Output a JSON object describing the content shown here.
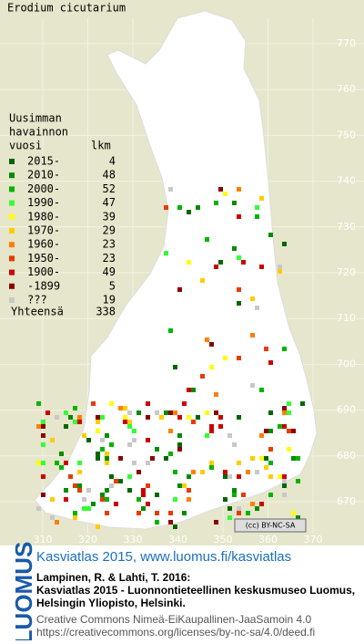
{
  "title": "Erodium cicutarium",
  "legend": {
    "heading": [
      "Uusimman",
      "havainnon"
    ],
    "col_year": "vuosi",
    "col_count": "lkm",
    "rows": [
      {
        "label": "2015-",
        "count": 4,
        "color": "#006600"
      },
      {
        "label": "2010-",
        "count": 48,
        "color": "#008c00"
      },
      {
        "label": "2000-",
        "count": 52,
        "color": "#00b400"
      },
      {
        "label": "1990-",
        "count": 47,
        "color": "#33ff33"
      },
      {
        "label": "1980-",
        "count": 39,
        "color": "#ffff00"
      },
      {
        "label": "1970-",
        "count": 29,
        "color": "#ffcc00"
      },
      {
        "label": "1960-",
        "count": 23,
        "color": "#ff8000"
      },
      {
        "label": "1950-",
        "count": 23,
        "color": "#e63c00"
      },
      {
        "label": "1900-",
        "count": 49,
        "color": "#cc0000"
      },
      {
        "label": "-1899",
        "count": 5,
        "color": "#8b0000"
      },
      {
        "label": "???",
        "count": 19,
        "color": "#c8c8c8"
      }
    ],
    "total_label": "Yhteensä",
    "total": 338
  },
  "axes": {
    "x_labels": [
      310,
      320,
      330,
      340,
      350,
      360,
      370
    ],
    "y_labels": [
      770,
      760,
      750,
      740,
      730,
      720,
      710,
      700,
      690,
      680,
      670
    ]
  },
  "license_badge": "(cc) BY-NC-SA",
  "footer": {
    "logo": "LUOMUS",
    "headline": "Kasviatlas 2015, www.luomus.fi/kasviatlas",
    "citation": [
      "Lampinen, R. & Lahti, T. 2016:",
      "Kasviatlas 2015 - Luonnontieteellinen keskusmuseo Luomus,",
      "Helsingin Yliopisto, Helsinki."
    ],
    "license": [
      "Creative Commons Nimeä-EiKaupallinen-JaaSamoin 4.0",
      "https://creativecommons.org/licenses/by-nc-sa/4.0/deed.fi"
    ]
  }
}
